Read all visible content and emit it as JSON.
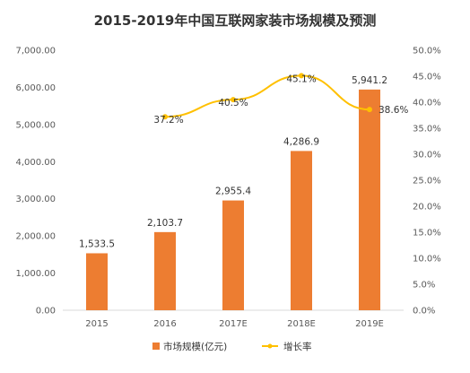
{
  "chart_data": {
    "type": "bar",
    "title": "2015-2019年中国互联网家装市场规模及预测",
    "categories": [
      "2015",
      "2016",
      "2017E",
      "2018E",
      "2019E"
    ],
    "series": [
      {
        "name": "市场规模(亿元)",
        "type": "bar",
        "axis": "left",
        "values": [
          1533.5,
          2103.7,
          2955.4,
          4286.9,
          5941.2
        ],
        "labels": [
          "1,533.5",
          "2,103.7",
          "2,955.4",
          "4,286.9",
          "5,941.2"
        ],
        "color": "#ED7D31"
      },
      {
        "name": "增长率",
        "type": "line",
        "axis": "right",
        "values": [
          null,
          37.2,
          40.5,
          45.1,
          38.6
        ],
        "labels": [
          "",
          "37.2%",
          "40.5%",
          "45.1%",
          "38.6%"
        ],
        "color": "#FFC000"
      }
    ],
    "ylim_left": [
      0,
      7000
    ],
    "ylim_right": [
      0,
      50
    ],
    "yticks_left": [
      "0.00",
      "1,000.00",
      "2,000.00",
      "3,000.00",
      "4,000.00",
      "5,000.00",
      "6,000.00",
      "7,000.00"
    ],
    "yticks_right": [
      "0.0%",
      "5.0%",
      "10.0%",
      "15.0%",
      "20.0%",
      "25.0%",
      "30.0%",
      "35.0%",
      "40.0%",
      "45.0%",
      "50.0%"
    ],
    "grid": false,
    "legend_position": "bottom"
  }
}
